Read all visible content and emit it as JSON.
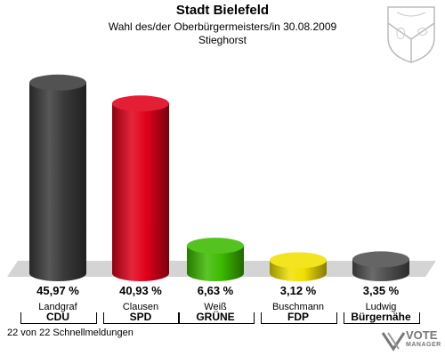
{
  "header": {
    "title": "Stadt Bielefeld",
    "subtitle": "Wahl des/der Oberbürgermeisters/in 30.08.2009",
    "district": "Stieghorst"
  },
  "footer": {
    "reporting_status": "22 von 22 Schnellmeldungen"
  },
  "brand": {
    "line1": "VOTE",
    "line2": "MANAGER"
  },
  "chart_data": {
    "type": "bar",
    "categories": [
      "CDU",
      "SPD",
      "GRÜNE",
      "FDP",
      "Bürgernähe"
    ],
    "candidates": [
      "Landgraf",
      "Clausen",
      "Weiß",
      "Buschmann",
      "Ludwig"
    ],
    "values": [
      45.97,
      40.93,
      6.63,
      3.12,
      3.35
    ],
    "value_labels": [
      "45,97 %",
      "40,93 %",
      "6,63 %",
      "3,12 %",
      "3,35 %"
    ],
    "colors": [
      "#3a3a3a",
      "#e0001a",
      "#3dbb00",
      "#f0e000",
      "#505050"
    ],
    "ylim": [
      0,
      50
    ],
    "grid": false,
    "legend": "none"
  }
}
